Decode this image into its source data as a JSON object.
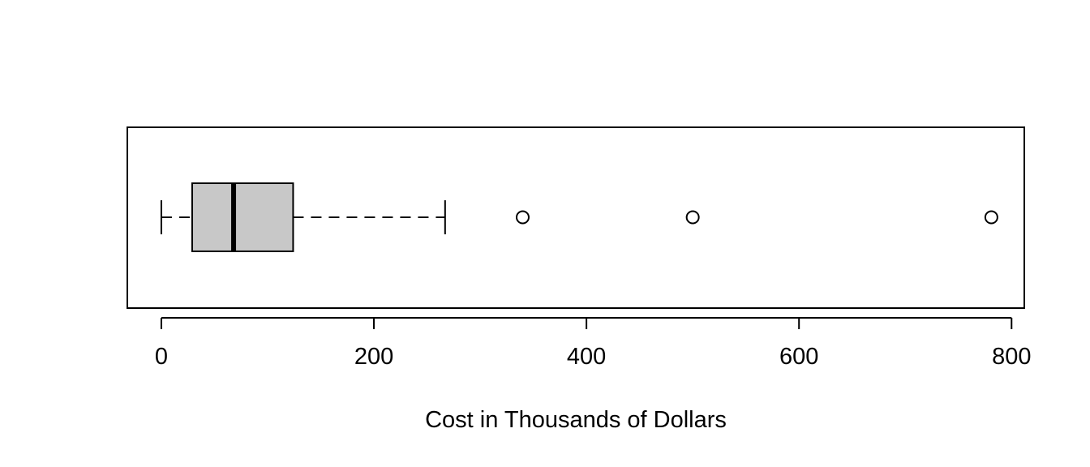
{
  "chart_data": {
    "type": "boxplot",
    "orientation": "horizontal",
    "title": "",
    "xlabel": "Cost in Thousands of Dollars",
    "ylabel": "",
    "xlim": [
      -32,
      812
    ],
    "x_ticks": [
      0,
      200,
      400,
      600,
      800
    ],
    "x_tick_labels": [
      "0",
      "200",
      "400",
      "600",
      "800"
    ],
    "box": {
      "whisker_low": 0,
      "q1": 29,
      "median": 68,
      "q3": 124,
      "whisker_high": 267
    },
    "outliers": [
      340,
      500,
      781
    ],
    "colors": {
      "box_fill": "#c8c8c8",
      "stroke": "#000000",
      "background": "#ffffff"
    }
  }
}
